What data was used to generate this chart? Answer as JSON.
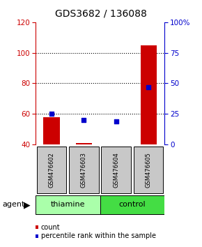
{
  "title": "GDS3682 / 136088",
  "samples": [
    "GSM476602",
    "GSM476603",
    "GSM476604",
    "GSM476605"
  ],
  "counts": [
    58,
    41,
    40,
    105
  ],
  "percentiles": [
    25,
    20,
    19,
    47
  ],
  "ylim_left": [
    40,
    120
  ],
  "ylim_right": [
    0,
    100
  ],
  "yticks_left": [
    40,
    60,
    80,
    100,
    120
  ],
  "yticks_right": [
    0,
    25,
    50,
    75,
    100
  ],
  "ytick_labels_right": [
    "0",
    "25",
    "50",
    "75",
    "100%"
  ],
  "grid_lines": [
    60,
    80,
    100
  ],
  "groups": [
    {
      "label": "thiamine",
      "samples": [
        0,
        1
      ],
      "color": "#aaffaa"
    },
    {
      "label": "control",
      "samples": [
        2,
        3
      ],
      "color": "#44dd44"
    }
  ],
  "bar_color": "#cc0000",
  "dot_color": "#0000cc",
  "background_color": "#ffffff",
  "sample_box_color": "#c8c8c8",
  "agent_label": "agent",
  "legend_count_label": "count",
  "legend_pct_label": "percentile rank within the sample",
  "title_fontsize": 10,
  "tick_fontsize": 7.5,
  "sample_fontsize": 6,
  "group_fontsize": 8,
  "legend_fontsize": 7,
  "agent_fontsize": 8,
  "bar_width": 0.5
}
